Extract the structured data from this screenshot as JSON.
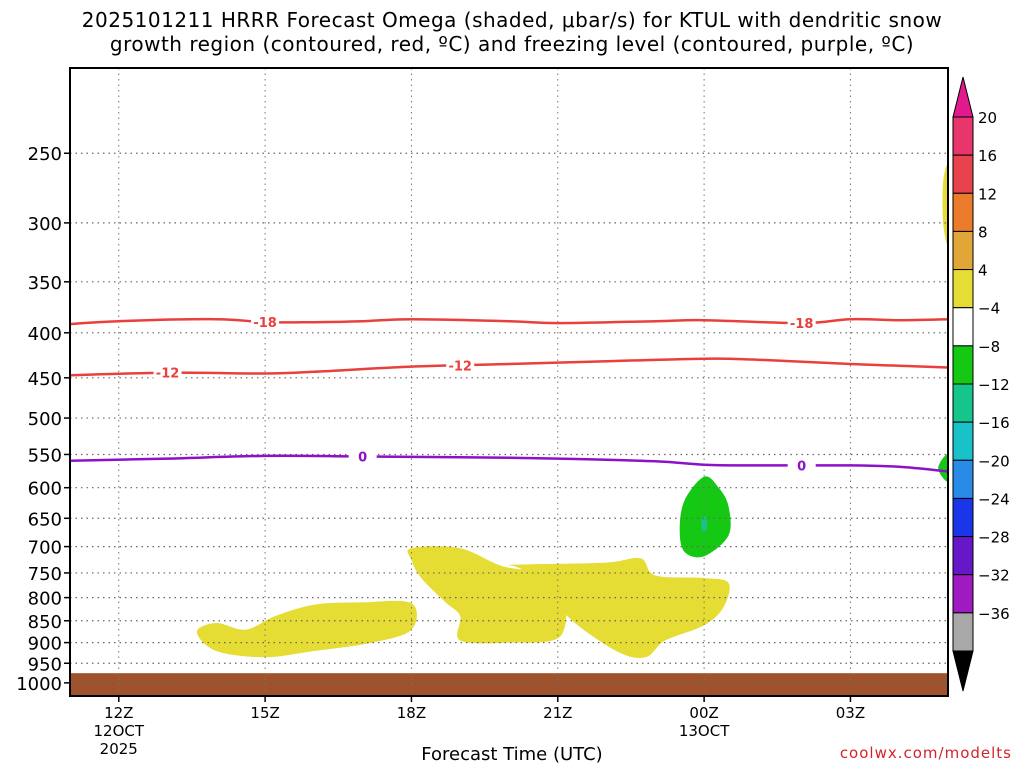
{
  "chart_data": {
    "type": "heatmap",
    "title_line1": "2025101211 HRRR Forecast Omega (shaded, μbar/s) for KTUL with dendritic snow",
    "title_line2": "growth region (contoured, red, ºC) and freezing level (contoured, purple, ºC)",
    "xlabel": "Forecast Time (UTC)",
    "watermark": "coolwx.com/modelts",
    "x_range_hours": [
      -1,
      17
    ],
    "y_axis": {
      "scale": "log-pressure",
      "range_hpa": [
        200,
        1035
      ],
      "ticks": [
        250,
        300,
        350,
        400,
        450,
        500,
        550,
        600,
        650,
        700,
        750,
        800,
        850,
        900,
        950,
        1000
      ]
    },
    "x_ticks": [
      {
        "hour": 0,
        "label": "12Z",
        "sub1": "12OCT",
        "sub2": "2025"
      },
      {
        "hour": 3,
        "label": "15Z",
        "sub1": "",
        "sub2": ""
      },
      {
        "hour": 6,
        "label": "18Z",
        "sub1": "",
        "sub2": ""
      },
      {
        "hour": 9,
        "label": "21Z",
        "sub1": "",
        "sub2": ""
      },
      {
        "hour": 12,
        "label": "00Z",
        "sub1": "13OCT",
        "sub2": ""
      },
      {
        "hour": 15,
        "label": "03Z",
        "sub1": "",
        "sub2": ""
      }
    ],
    "grid": true,
    "colorbar": {
      "labels": [
        "20",
        "16",
        "12",
        "8",
        "4",
        "−4",
        "−8",
        "−12",
        "−16",
        "−20",
        "−24",
        "−28",
        "−32",
        "−36"
      ],
      "colors": [
        "#e8366c",
        "#e8434d",
        "#ea7c2c",
        "#e0a637",
        "#e5dc34",
        "#ffffff",
        "#14c814",
        "#15c58b",
        "#19c1c8",
        "#2a8ae8",
        "#1b35e8",
        "#6618c8",
        "#9e1bc2",
        "#a8a8a8"
      ],
      "top_arrow_color": "#e01a8c",
      "bottom_arrow_color": "#000000"
    },
    "contours": [
      {
        "label": "-18",
        "color": "#e8403c",
        "points": [
          [
            -1,
            391
          ],
          [
            0,
            388
          ],
          [
            2,
            386
          ],
          [
            3,
            389
          ],
          [
            4,
            389
          ],
          [
            5,
            388
          ],
          [
            6,
            386
          ],
          [
            8,
            388
          ],
          [
            9,
            390
          ],
          [
            11,
            388
          ],
          [
            12,
            387
          ],
          [
            14,
            390
          ],
          [
            15,
            386
          ],
          [
            16,
            387
          ],
          [
            17,
            386
          ]
        ],
        "label_hours": [
          3,
          14
        ]
      },
      {
        "label": "-12",
        "color": "#e8403c",
        "points": [
          [
            -1,
            447
          ],
          [
            1,
            444
          ],
          [
            3,
            445
          ],
          [
            4,
            443
          ],
          [
            6,
            437
          ],
          [
            8,
            434
          ],
          [
            10,
            431
          ],
          [
            12,
            428
          ],
          [
            13,
            429
          ],
          [
            15,
            434
          ],
          [
            17,
            438
          ]
        ],
        "label_hours": [
          1,
          7
        ]
      },
      {
        "label": "0",
        "color": "#8c12c8",
        "points": [
          [
            -1,
            559
          ],
          [
            1,
            556
          ],
          [
            3,
            552
          ],
          [
            5,
            553
          ],
          [
            7,
            554
          ],
          [
            9,
            556
          ],
          [
            11,
            560
          ],
          [
            12,
            565
          ],
          [
            13,
            566
          ],
          [
            15,
            566
          ],
          [
            16,
            568
          ],
          [
            17,
            575
          ]
        ],
        "label_hours": [
          5,
          14
        ]
      }
    ],
    "shaded_regions": [
      {
        "value_band": "4 to 8",
        "color": "#e5dc34",
        "points": [
          [
            2.6,
            870
          ],
          [
            3.2,
            840
          ],
          [
            4.0,
            815
          ],
          [
            5.0,
            810
          ],
          [
            6.0,
            812
          ],
          [
            6.0,
            870
          ],
          [
            5.2,
            900
          ],
          [
            4.0,
            920
          ],
          [
            3.0,
            935
          ],
          [
            2.0,
            920
          ],
          [
            1.6,
            875
          ],
          [
            2.0,
            855
          ]
        ]
      },
      {
        "value_band": "4 to 8",
        "color": "#e5dc34",
        "points": [
          [
            6.0,
            703
          ],
          [
            7.0,
            703
          ],
          [
            8.0,
            740
          ],
          [
            9.3,
            745
          ],
          [
            9.3,
            770
          ],
          [
            9.2,
            820
          ],
          [
            9.0,
            890
          ],
          [
            8.0,
            900
          ],
          [
            7.0,
            895
          ],
          [
            7.0,
            840
          ],
          [
            6.7,
            810
          ],
          [
            6.2,
            760
          ],
          [
            6.0,
            725
          ]
        ]
      },
      {
        "value_band": "4 to 8",
        "color": "#e5dc34",
        "points": [
          [
            10.0,
            730
          ],
          [
            10.7,
            722
          ],
          [
            11.0,
            755
          ],
          [
            12.0,
            760
          ],
          [
            12.5,
            770
          ],
          [
            12.4,
            820
          ],
          [
            12.0,
            860
          ],
          [
            11.2,
            895
          ],
          [
            10.8,
            935
          ],
          [
            10.2,
            920
          ],
          [
            9.2,
            840
          ],
          [
            8.8,
            770
          ],
          [
            8.2,
            740
          ],
          [
            8.0,
            735
          ],
          [
            8.5,
            733
          ]
        ]
      },
      {
        "value_band": "-4 to -8",
        "color": "#14c814",
        "points": [
          [
            12.0,
            583
          ],
          [
            12.3,
            600
          ],
          [
            12.5,
            630
          ],
          [
            12.5,
            680
          ],
          [
            12.0,
            718
          ],
          [
            11.6,
            710
          ],
          [
            11.5,
            670
          ],
          [
            11.6,
            620
          ]
        ]
      },
      {
        "value_band": "4 to 8",
        "color": "#e5dc34",
        "points": [
          [
            16.9,
            270
          ],
          [
            17.0,
            260
          ],
          [
            17.0,
            315
          ],
          [
            16.9,
            300
          ]
        ]
      },
      {
        "value_band": "-4 to -8",
        "color": "#14c814",
        "points": [
          [
            16.8,
            570
          ],
          [
            17.0,
            550
          ],
          [
            17.0,
            590
          ]
        ]
      }
    ],
    "terrain": {
      "color": "#a0522d",
      "surface_hpa": 975
    }
  }
}
